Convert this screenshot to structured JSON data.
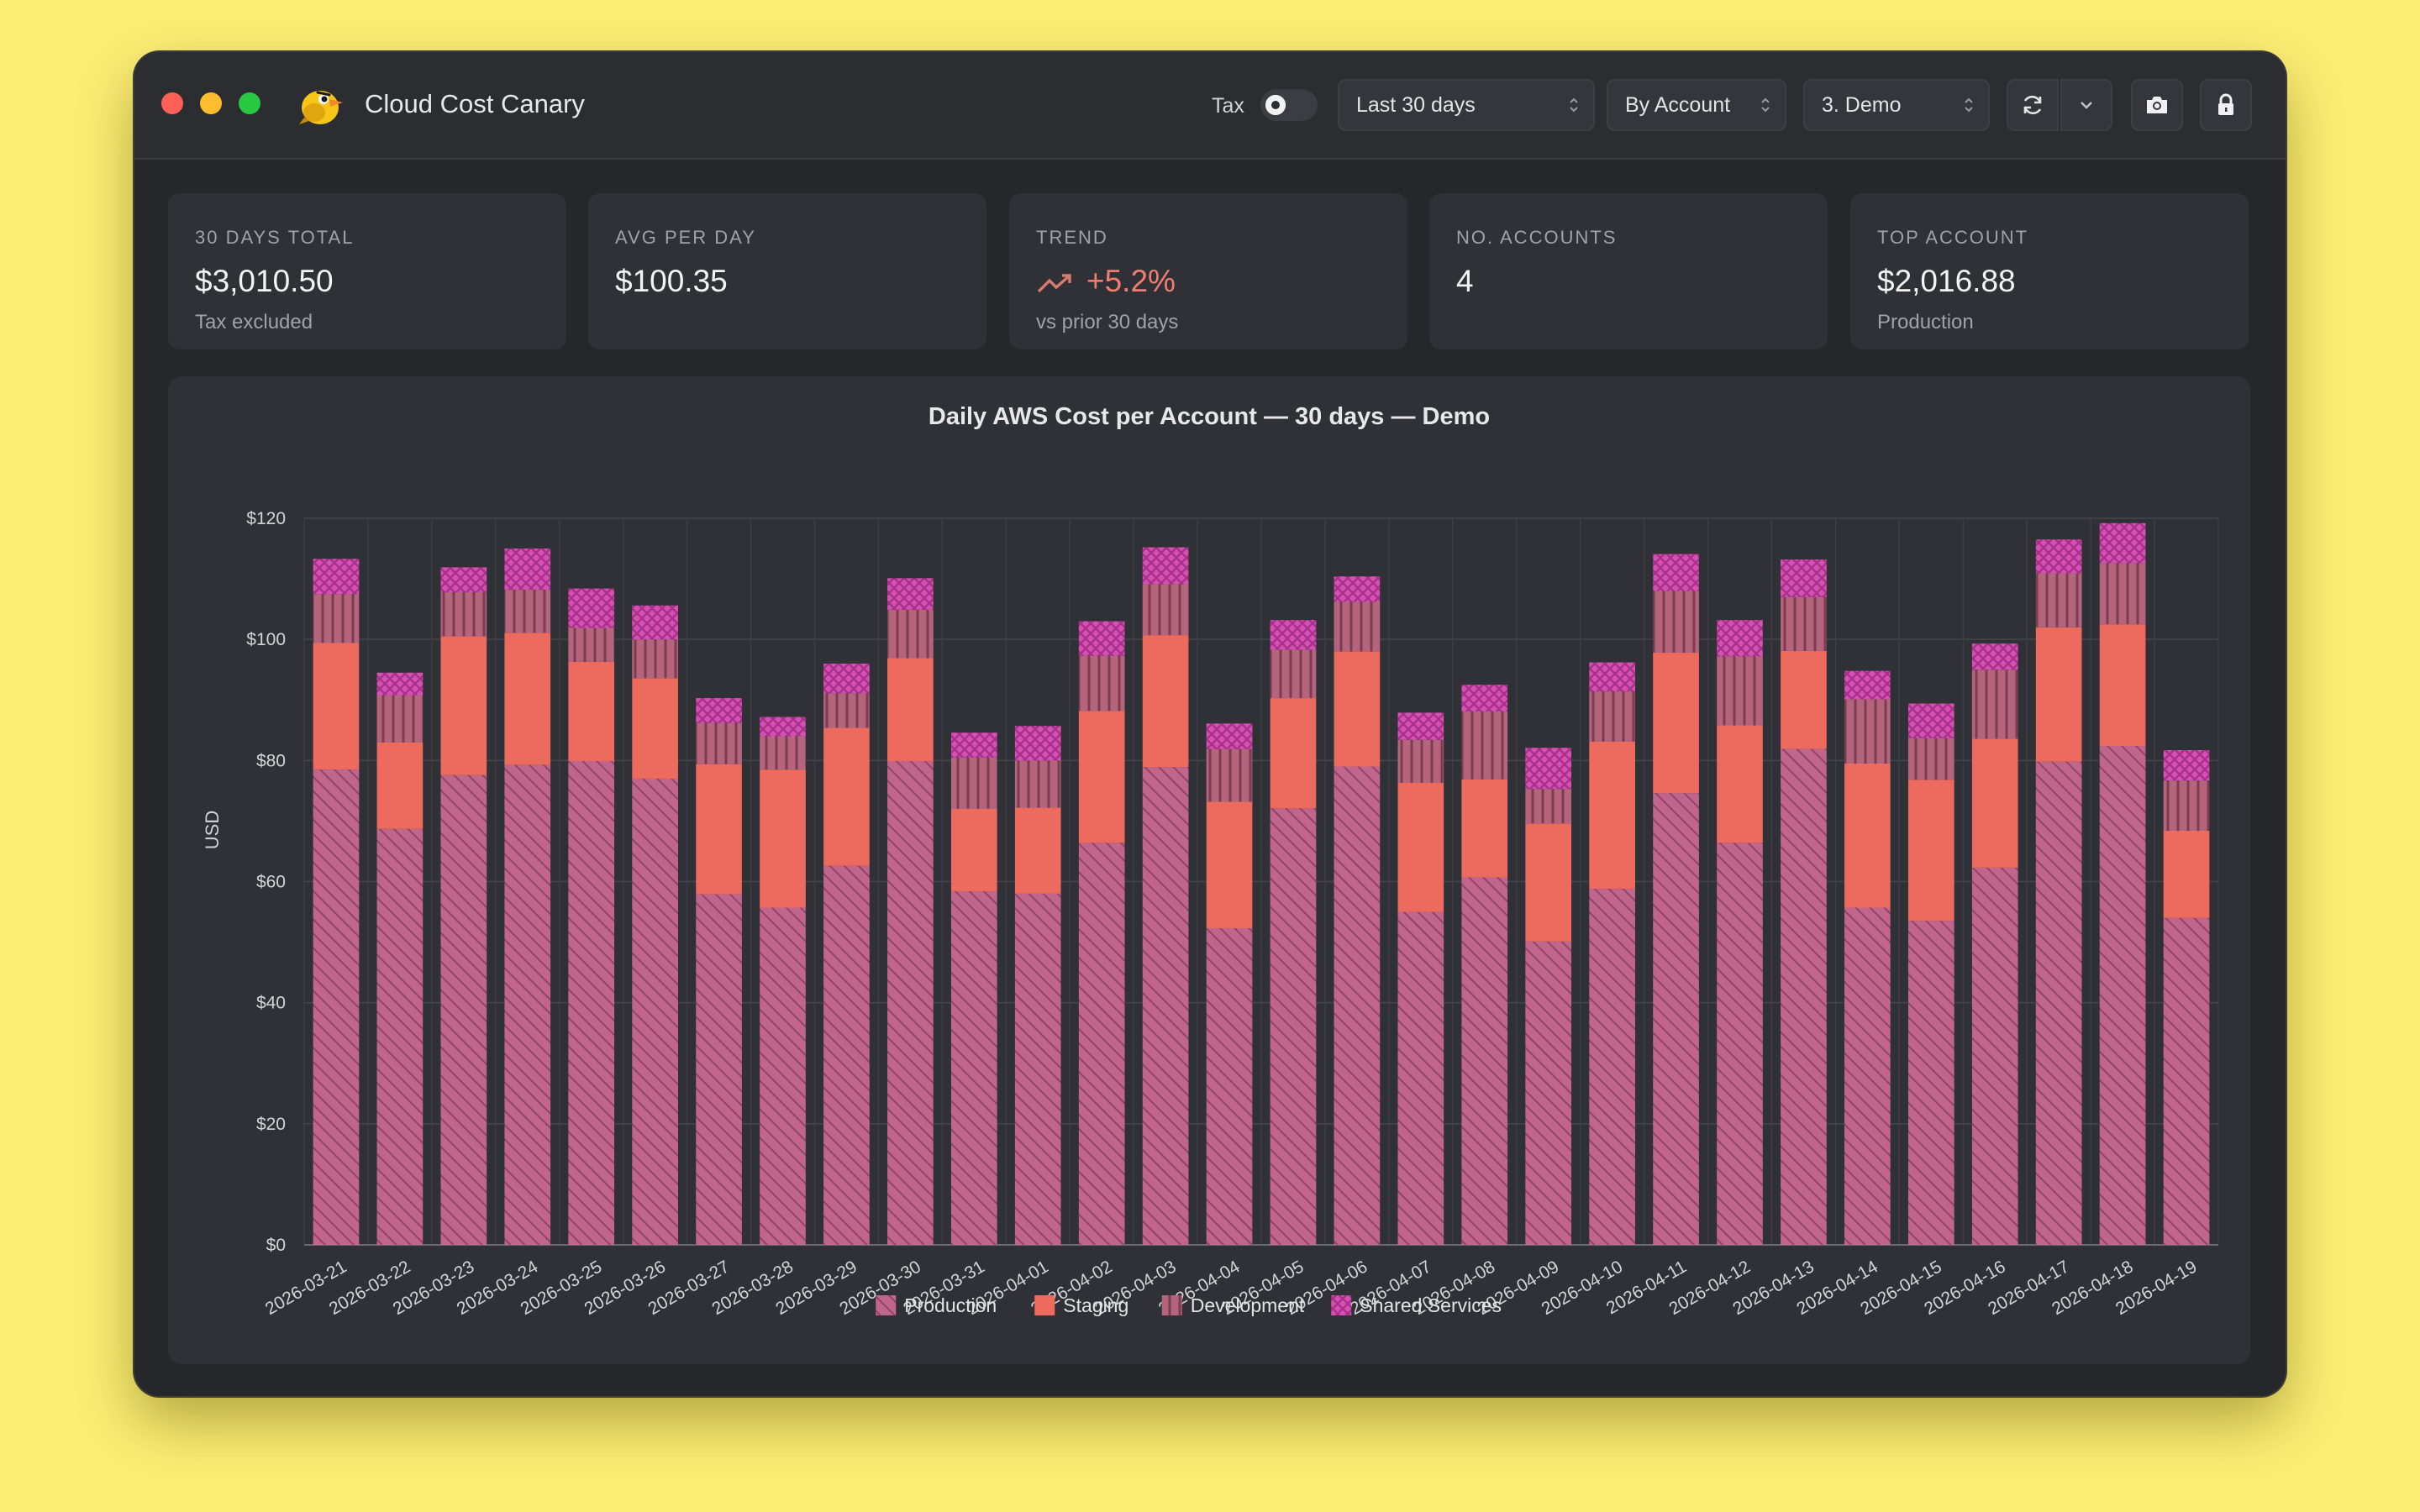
{
  "window": {
    "app_title": "Cloud Cost Canary",
    "app_icon": "canary-bird-icon"
  },
  "toolbar": {
    "tax_label": "Tax",
    "tax_enabled": false,
    "range_value": "Last 30 days",
    "group_value": "By Account",
    "account_value": "3. Demo",
    "icons": [
      "refresh-icon",
      "chevron-down-icon",
      "camera-icon",
      "lock-icon"
    ]
  },
  "summary": [
    {
      "label": "30 DAYS TOTAL",
      "value": "$3,010.50",
      "sub": "Tax excluded"
    },
    {
      "label": "AVG PER DAY",
      "value": "$100.35",
      "sub": ""
    },
    {
      "label": "TREND",
      "value": "+5.2%",
      "sub": "vs prior 30 days"
    },
    {
      "label": "NO. ACCOUNTS",
      "value": "4",
      "sub": ""
    },
    {
      "label": "TOP ACCOUNT",
      "value": "$2,016.88",
      "sub": "Production"
    }
  ],
  "colors": {
    "background": "#fbee74",
    "window": "#26272b",
    "panel": "#303136",
    "trend": "#ef7d72",
    "production": "#c2658d",
    "staging": "#ec6a5e",
    "development": "#b4647d",
    "shared_services": "#d84fb4"
  },
  "chart_data": {
    "type": "bar",
    "stacked": true,
    "title": "Daily AWS Cost per Account — 30 days — Demo",
    "xlabel": "",
    "ylabel": "USD",
    "ylim": [
      0,
      120
    ],
    "yticks": [
      0,
      20,
      40,
      60,
      80,
      100,
      120
    ],
    "ytick_labels": [
      "$0",
      "$20",
      "$40",
      "$60",
      "$80",
      "$100",
      "$120"
    ],
    "grid": true,
    "legend": "bottom",
    "categories": [
      "2026-03-21",
      "2026-03-22",
      "2026-03-23",
      "2026-03-24",
      "2026-03-25",
      "2026-03-26",
      "2026-03-27",
      "2026-03-28",
      "2026-03-29",
      "2026-03-30",
      "2026-03-31",
      "2026-04-01",
      "2026-04-02",
      "2026-04-03",
      "2026-04-04",
      "2026-04-05",
      "2026-04-06",
      "2026-04-07",
      "2026-04-08",
      "2026-04-09",
      "2026-04-10",
      "2026-04-11",
      "2026-04-12",
      "2026-04-13",
      "2026-04-14",
      "2026-04-15",
      "2026-04-16",
      "2026-04-17",
      "2026-04-18",
      "2026-04-19"
    ],
    "series": [
      {
        "name": "Production",
        "pattern": "diagonal",
        "color": "#c2658d",
        "values": [
          78.5,
          68.7,
          77.6,
          79.3,
          79.9,
          77.0,
          57.9,
          55.7,
          62.6,
          79.9,
          58.4,
          58.0,
          66.4,
          78.9,
          52.3,
          72.1,
          79.0,
          55.0,
          60.7,
          50.1,
          58.8,
          74.6,
          66.4,
          81.9,
          55.7,
          53.5,
          62.3,
          79.8,
          82.4,
          54.0
        ]
      },
      {
        "name": "Staging",
        "pattern": "solid",
        "color": "#ec6a5e",
        "values": [
          20.9,
          14.3,
          22.9,
          21.8,
          16.4,
          16.6,
          21.5,
          22.8,
          22.8,
          17.0,
          13.6,
          14.2,
          21.8,
          21.8,
          20.9,
          18.2,
          19.0,
          21.3,
          16.2,
          19.5,
          24.3,
          23.2,
          19.4,
          16.2,
          23.8,
          23.3,
          21.3,
          22.2,
          20.1,
          14.4
        ]
      },
      {
        "name": "Development",
        "pattern": "vertical",
        "color": "#b4647d",
        "values": [
          8.1,
          7.8,
          7.3,
          7.1,
          5.6,
          6.4,
          6.8,
          5.5,
          5.7,
          8.0,
          8.5,
          7.8,
          9.1,
          8.4,
          8.7,
          8.0,
          8.2,
          7.1,
          11.2,
          5.7,
          8.3,
          10.2,
          11.4,
          8.9,
          10.6,
          6.9,
          11.4,
          8.9,
          10.1,
          8.3
        ]
      },
      {
        "name": "Shared Services",
        "pattern": "crosshatch",
        "color": "#d84fb4",
        "values": [
          5.8,
          3.7,
          4.1,
          6.8,
          6.5,
          5.6,
          4.1,
          3.2,
          4.9,
          5.2,
          4.1,
          5.7,
          5.7,
          6.1,
          4.2,
          4.9,
          4.2,
          4.5,
          4.4,
          6.8,
          4.8,
          6.1,
          6.0,
          6.2,
          4.7,
          5.7,
          4.3,
          5.6,
          6.6,
          5.0
        ]
      }
    ]
  }
}
